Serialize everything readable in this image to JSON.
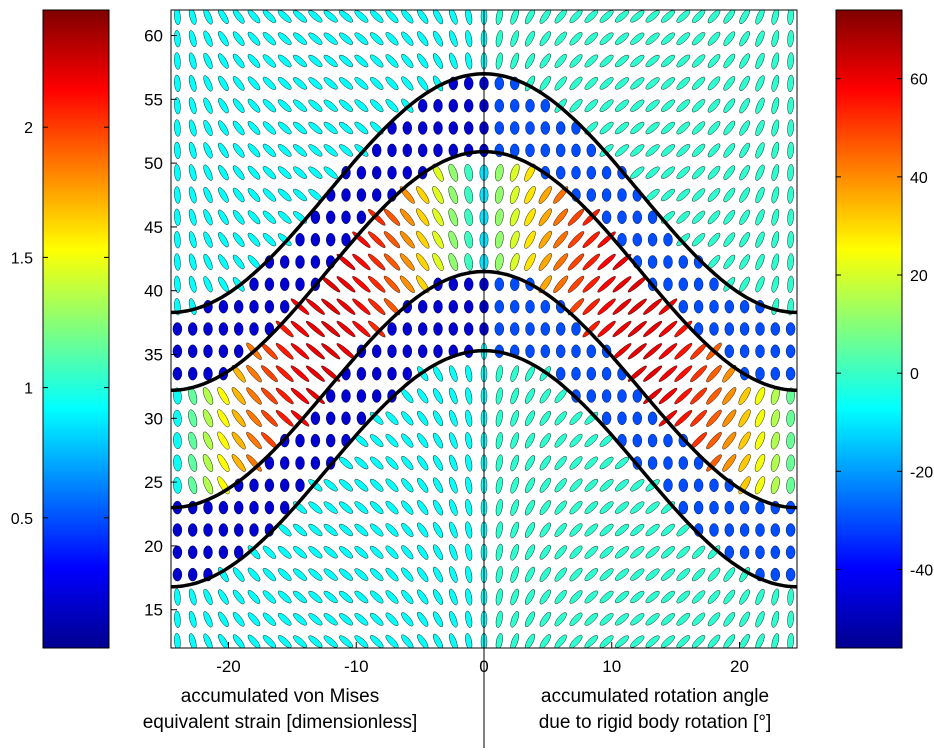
{
  "chart_data": {
    "type": "ellipse-field",
    "xlim": [
      -24.5,
      24.5
    ],
    "ylim": [
      12,
      62
    ],
    "x_ticks": [
      -20,
      -10,
      0,
      10,
      20
    ],
    "y_ticks": [
      15,
      20,
      25,
      30,
      35,
      40,
      45,
      50,
      55,
      60
    ],
    "axis_divider_x": 0,
    "fold_layer_boundaries": [
      {
        "x": [
          -24.5,
          -18,
          -12,
          -6,
          0,
          6,
          12,
          18,
          24.5
        ],
        "y": [
          38.3,
          40.4,
          45.6,
          53.9,
          57.0,
          53.9,
          45.6,
          40.4,
          38.3
        ]
      },
      {
        "x": [
          -24.5,
          -18,
          -12,
          -6,
          0,
          6,
          12,
          18,
          24.5
        ],
        "y": [
          32.2,
          34.3,
          39.5,
          47.8,
          50.9,
          47.8,
          39.5,
          34.3,
          32.2
        ]
      },
      {
        "x": [
          -24.5,
          -18,
          -12,
          -6,
          0,
          6,
          12,
          18,
          24.5
        ],
        "y": [
          23.0,
          25.2,
          30.9,
          38.6,
          41.5,
          38.6,
          30.9,
          25.2,
          23.0
        ]
      },
      {
        "x": [
          -24.5,
          -18,
          -12,
          -6,
          0,
          6,
          12,
          18,
          24.5
        ],
        "y": [
          16.8,
          19.0,
          24.7,
          32.4,
          35.3,
          32.4,
          24.7,
          19.0,
          16.8
        ]
      }
    ],
    "left_colorbar": {
      "ticks": [
        0.5,
        1,
        1.5,
        2
      ],
      "range": [
        0,
        2.45
      ],
      "colormap": "jet",
      "caption_line1": "accumulated von Mises",
      "caption_line2": "equivalent strain [dimensionless]"
    },
    "right_colorbar": {
      "ticks": [
        -40,
        -20,
        0,
        20,
        40,
        60
      ],
      "range": [
        -56,
        74
      ],
      "colormap": "jet",
      "caption_line1": "accumulated rotation angle",
      "caption_line2": "due to rigid body rotation [°]"
    },
    "colors": {
      "curve": "#000000",
      "stiff_layer": "#0a1fc8",
      "matrix": "#2fd0d8",
      "high_strain": "#c83232"
    }
  }
}
